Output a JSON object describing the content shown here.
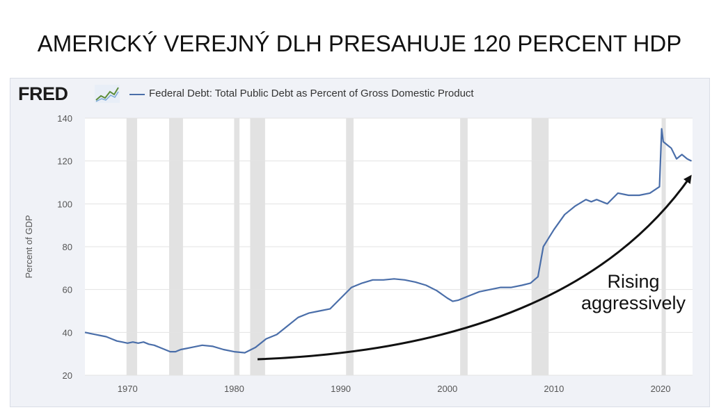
{
  "headline": "AMERICKÝ VEREJNÝ DLH PRESAHUJE 120 PERCENT HDP",
  "logo_text": "FRED",
  "colors": {
    "series": "#4a6ea9",
    "recession": "#e2e2e2",
    "plot_bg": "#ffffff",
    "frame_bg": "#f0f2f7"
  },
  "annotation": {
    "line1": "Rising",
    "line2": "aggressively"
  },
  "chart_data": {
    "type": "line",
    "title": "",
    "xlabel": "",
    "ylabel": "Percent of GDP",
    "xlim": [
      1966,
      2023
    ],
    "ylim": [
      20,
      140
    ],
    "yticks": [
      20,
      40,
      60,
      80,
      100,
      120,
      140
    ],
    "xticks": [
      1970,
      1980,
      1990,
      2000,
      2010,
      2020
    ],
    "grid": "horizontal",
    "legend_position": "top",
    "recessions": [
      [
        1969.9,
        1970.9
      ],
      [
        1973.9,
        1975.2
      ],
      [
        1980.0,
        1980.5
      ],
      [
        1981.5,
        1982.9
      ],
      [
        1990.5,
        1991.2
      ],
      [
        2001.2,
        2001.9
      ],
      [
        2007.9,
        2009.5
      ],
      [
        2020.1,
        2020.4
      ]
    ],
    "series": [
      {
        "name": "Federal Debt: Total Public Debt as Percent of Gross Domestic Product",
        "x": [
          1966.0,
          1966.5,
          1967.0,
          1967.5,
          1968.0,
          1968.5,
          1969.0,
          1969.5,
          1970.0,
          1970.5,
          1971.0,
          1971.5,
          1972.0,
          1972.5,
          1973.0,
          1973.5,
          1974.0,
          1974.5,
          1975.0,
          1975.5,
          1976.0,
          1977.0,
          1978.0,
          1979.0,
          1980.0,
          1981.0,
          1982.0,
          1983.0,
          1984.0,
          1985.0,
          1986.0,
          1987.0,
          1988.0,
          1989.0,
          1990.0,
          1991.0,
          1992.0,
          1993.0,
          1994.0,
          1995.0,
          1996.0,
          1997.0,
          1998.0,
          1999.0,
          2000.0,
          2000.5,
          2001.0,
          2002.0,
          2003.0,
          2004.0,
          2005.0,
          2006.0,
          2007.0,
          2007.8,
          2008.5,
          2009.0,
          2009.5,
          2010.0,
          2011.0,
          2012.0,
          2013.0,
          2013.5,
          2014.0,
          2015.0,
          2016.0,
          2017.0,
          2018.0,
          2019.0,
          2019.9,
          2020.1,
          2020.25,
          2020.5,
          2020.75,
          2021.0,
          2021.5,
          2022.0,
          2022.5,
          2022.9
        ],
        "y": [
          40,
          39.5,
          39,
          38.5,
          38,
          37,
          36,
          35.5,
          35,
          35.5,
          35,
          35.5,
          34.5,
          34,
          33,
          32,
          31,
          31,
          32,
          32.5,
          33,
          34,
          33.5,
          32,
          31,
          30.5,
          33,
          37,
          39,
          43,
          47,
          49,
          50,
          51,
          56,
          61,
          63,
          64.5,
          64.5,
          65,
          64.5,
          63.5,
          62,
          59.5,
          56,
          54.5,
          55,
          57,
          59,
          60,
          61,
          61,
          62,
          63,
          66,
          80,
          84,
          88,
          95,
          99,
          102,
          101,
          102,
          100,
          105,
          104,
          104,
          105,
          108,
          135,
          129,
          128,
          127,
          126,
          121,
          123,
          121,
          120
        ]
      }
    ]
  }
}
